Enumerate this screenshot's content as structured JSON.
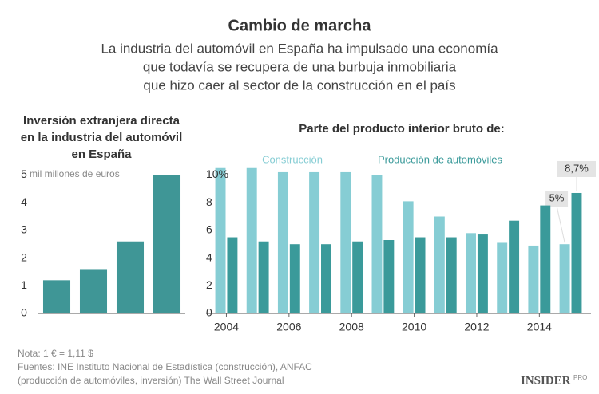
{
  "header": {
    "title": "Cambio de marcha",
    "subtitle": [
      "La industria del automóvil en España ha impulsado una economía",
      "que todavía se recupera de una burbuja inmobiliaria",
      "que hizo caer al sector de la construcción en el país"
    ]
  },
  "chart_data": [
    {
      "type": "bar",
      "title": [
        "Inversión extranjera directa",
        "en la industria del automóvil",
        "en España"
      ],
      "y_unit": "mil millones de euros",
      "categories": [
        null,
        null,
        null,
        null
      ],
      "values": [
        1.2,
        1.6,
        2.6,
        5.0
      ],
      "color": "#3f9696",
      "ylim": [
        0,
        5.3
      ],
      "yticks": [
        0,
        1,
        2,
        3,
        4,
        5
      ]
    },
    {
      "type": "grouped_bar",
      "title": "Parte del producto interior bruto de:",
      "x": [
        2004,
        2005,
        2006,
        2007,
        2008,
        2009,
        2010,
        2011,
        2012,
        2013,
        2014,
        2015
      ],
      "xlim": [
        2003.35,
        2015.65
      ],
      "xticks": [
        2004,
        2006,
        2008,
        2010,
        2012,
        2014
      ],
      "ylim": [
        0,
        10.6
      ],
      "yticks": [
        0,
        2,
        4,
        6,
        8,
        {
          "value": 10,
          "label": "10%"
        }
      ],
      "series": [
        {
          "name": "Construcción",
          "color": "#86cdd4",
          "values": [
            10.5,
            10.5,
            10.2,
            10.2,
            10.2,
            10.0,
            8.1,
            7.0,
            5.8,
            5.1,
            4.9,
            5.0
          ],
          "value_labels": [
            null,
            null,
            null,
            null,
            null,
            null,
            null,
            null,
            null,
            null,
            null,
            "5%"
          ]
        },
        {
          "name": "Producción de automóviles",
          "color": "#3a9a9a",
          "values": [
            5.5,
            5.2,
            5.0,
            5.0,
            5.2,
            5.3,
            5.5,
            5.5,
            5.7,
            6.7,
            7.8,
            8.7
          ],
          "value_labels": [
            null,
            null,
            null,
            null,
            null,
            null,
            null,
            null,
            null,
            null,
            null,
            "8,7%"
          ]
        }
      ]
    }
  ],
  "footer": {
    "notes": [
      "Nota: 1 € = 1,11 $",
      "Fuentes: INE Instituto Nacional de Estadística (construcción), ANFAC",
      "(producción de automóviles, inversión) The Wall Street Journal"
    ],
    "logo": "INSIDER",
    "logo_sup": "PRO"
  }
}
